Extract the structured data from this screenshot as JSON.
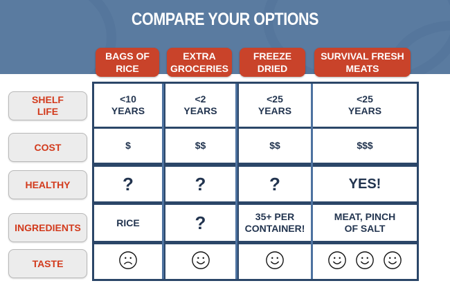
{
  "title": "COMPARE YOUR OPTIONS",
  "columns": [
    {
      "label": "BAGS OF\nRICE"
    },
    {
      "label": "EXTRA\nGROCERIES"
    },
    {
      "label": "FREEZE\nDRIED"
    },
    {
      "label": "SURVIVAL FRESH\nMEATS"
    }
  ],
  "rows": [
    {
      "label": "SHELF\nLIFE",
      "cells": [
        "<10\nYEARS",
        "<2\nYEARS",
        "<25\nYEARS",
        "<25\nYEARS"
      ]
    },
    {
      "label": "COST",
      "cells": [
        "$",
        "$$",
        "$$",
        "$$$"
      ]
    },
    {
      "label": "HEALTHY",
      "cells": [
        "?",
        "?",
        "?",
        "YES!"
      ]
    },
    {
      "label": "INGREDIENTS",
      "cells": [
        "RICE",
        "?",
        "35+ PER\nCONTAINER!",
        "MEAT, PINCH\nOF SALT"
      ]
    },
    {
      "label": "TASTE",
      "faces": [
        [
          "sad"
        ],
        [
          "happy"
        ],
        [
          "happy"
        ],
        [
          "happy",
          "happy",
          "happy"
        ]
      ]
    }
  ],
  "colors": {
    "band": "#5a7ba0",
    "header": "#c9432a",
    "label_text": "#d23a1c",
    "grid": "#2b4668",
    "text": "#22344f"
  }
}
